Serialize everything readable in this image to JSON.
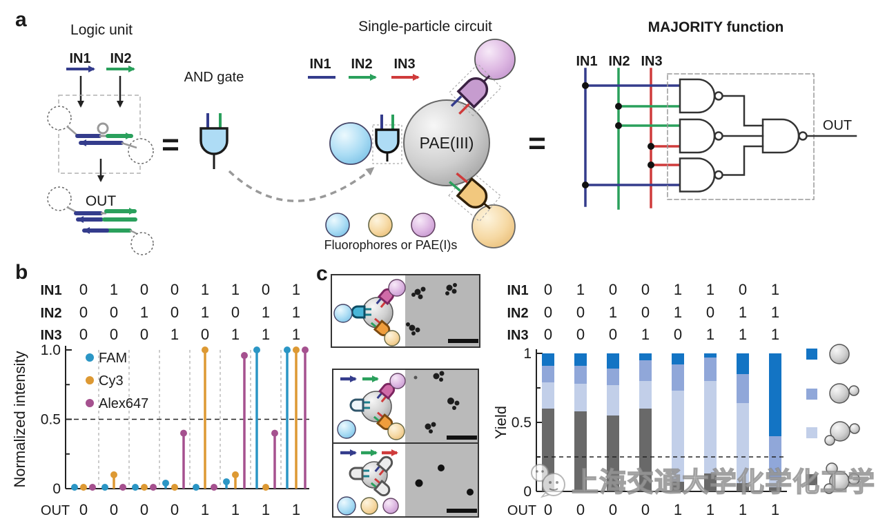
{
  "panel_a": {
    "label": "a",
    "logic_unit": {
      "title": "Logic unit",
      "in1": "IN1",
      "in2": "IN2",
      "out": "OUT"
    },
    "and_gate_label": "AND gate",
    "equals": "=",
    "single_particle": {
      "title": "Single-particle circuit",
      "in1": "IN1",
      "in2": "IN2",
      "in3": "IN3",
      "core": "PAE(III)",
      "caption": "Fluorophores or PAE(I)s"
    },
    "majority": {
      "title": "MAJORITY function",
      "in1": "IN1",
      "in2": "IN2",
      "in3": "IN3",
      "out": "OUT"
    }
  },
  "panel_b": {
    "label": "b"
  },
  "panel_c": {
    "label": "c"
  },
  "watermark": {
    "text": "上海交通大学化学化工学院"
  },
  "colors": {
    "in1_navy": "#343c8c",
    "in2_green": "#2aa05c",
    "in3_red": "#cf3b3b",
    "fam": "#2b96c5",
    "cy3": "#dd9933",
    "alex647": "#a5518f",
    "bar_single": "#1374c4",
    "bar_one_satellite": "#90a7d9",
    "bar_two_satellites": "#c2cfe9",
    "bar_three_satellites": "#696969",
    "and_gate_fill": "#aedcf5",
    "purple_gate_fill": "#c69ccf",
    "orange_gate_fill": "#f2c87e"
  },
  "chart_data": [
    {
      "type": "stem",
      "panel": "b",
      "title": "",
      "xlabel": "",
      "ylabel": "Normalized intensity",
      "ylim": [
        0,
        1
      ],
      "yticks": [
        {
          "v": 1.0,
          "label": "1.0"
        },
        {
          "v": 0.75,
          "label": ""
        },
        {
          "v": 0.5,
          "label": "0.5"
        },
        {
          "v": 0.25,
          "label": ""
        },
        {
          "v": 0,
          "label": "0"
        }
      ],
      "threshold": 0.5,
      "grid": "vertical-dashed-between-groups",
      "legend_position": "upper-left-inside",
      "input_rows": [
        {
          "label": "IN1",
          "color": "#343c8c",
          "values": [
            0,
            1,
            0,
            0,
            1,
            1,
            0,
            1
          ]
        },
        {
          "label": "IN2",
          "color": "#2aa05c",
          "values": [
            0,
            0,
            1,
            0,
            1,
            0,
            1,
            1
          ]
        },
        {
          "label": "IN3",
          "color": "#cf3b3b",
          "values": [
            0,
            0,
            0,
            1,
            0,
            1,
            1,
            1
          ]
        }
      ],
      "out_row": {
        "label": "OUT",
        "values": [
          0,
          0,
          0,
          0,
          1,
          1,
          1,
          1
        ]
      },
      "series": [
        {
          "name": "FAM",
          "color": "#2b96c5",
          "values": [
            0.01,
            0.01,
            0.01,
            0.04,
            0.01,
            0.05,
            1.0,
            1.0
          ]
        },
        {
          "name": "Cy3",
          "color": "#dd9933",
          "values": [
            0.01,
            0.1,
            0.01,
            0.01,
            1.0,
            0.1,
            0.01,
            1.0
          ]
        },
        {
          "name": "Alex647",
          "color": "#a5518f",
          "values": [
            0.01,
            0.01,
            0.01,
            0.4,
            0.01,
            0.96,
            0.4,
            1.0
          ]
        }
      ]
    },
    {
      "type": "bar",
      "stacked": true,
      "panel": "c",
      "title": "",
      "xlabel": "",
      "ylabel": "Yield",
      "ylim": [
        0,
        1
      ],
      "yticks": [
        {
          "v": 1,
          "label": "1"
        },
        {
          "v": 0.75,
          "label": ""
        },
        {
          "v": 0.5,
          "label": "0.5"
        },
        {
          "v": 0.25,
          "label": ""
        },
        {
          "v": 0,
          "label": "0"
        }
      ],
      "threshold": 0.25,
      "legend_position": "right-outside",
      "input_rows": [
        {
          "label": "IN1",
          "color": "#343c8c",
          "values": [
            0,
            1,
            0,
            0,
            1,
            1,
            0,
            1
          ]
        },
        {
          "label": "IN2",
          "color": "#2aa05c",
          "values": [
            0,
            0,
            1,
            0,
            1,
            0,
            1,
            1
          ]
        },
        {
          "label": "IN3",
          "color": "#cf3b3b",
          "values": [
            0,
            0,
            0,
            1,
            0,
            1,
            1,
            1
          ]
        }
      ],
      "out_row": {
        "label": "OUT",
        "values": [
          0,
          0,
          0,
          0,
          1,
          1,
          1,
          1
        ]
      },
      "series": [
        {
          "name": "PAE(III) with 3 satellites",
          "color": "#696969",
          "cluster": 4,
          "values": [
            0.6,
            0.58,
            0.55,
            0.6,
            0.07,
            0.13,
            0.06,
            0.03
          ]
        },
        {
          "name": "PAE(III) with 2 satellites",
          "color": "#c2cfe9",
          "cluster": 3,
          "values": [
            0.19,
            0.2,
            0.22,
            0.2,
            0.66,
            0.67,
            0.58,
            0.07
          ]
        },
        {
          "name": "PAE(III) with 1 satellite",
          "color": "#90a7d9",
          "cluster": 2,
          "values": [
            0.12,
            0.13,
            0.12,
            0.15,
            0.19,
            0.17,
            0.21,
            0.3
          ]
        },
        {
          "name": "PAE(III) single particle",
          "color": "#1374c4",
          "cluster": 1,
          "values": [
            0.09,
            0.09,
            0.11,
            0.05,
            0.08,
            0.03,
            0.15,
            0.6
          ]
        }
      ],
      "legend": [
        {
          "color": "#1374c4",
          "cluster": 1
        },
        {
          "color": "#90a7d9",
          "cluster": 2
        },
        {
          "color": "#c2cfe9",
          "cluster": 3
        },
        {
          "color": "#696969",
          "cluster": 4
        }
      ]
    }
  ]
}
